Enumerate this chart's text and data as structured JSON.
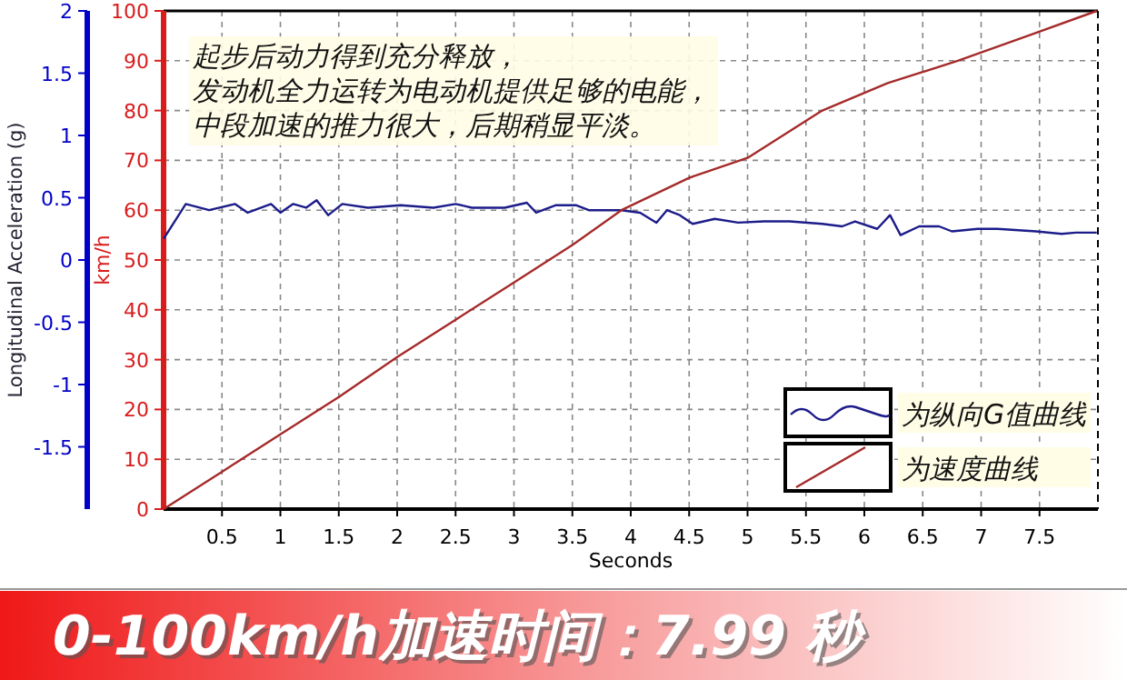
{
  "chart_data": {
    "type": "line",
    "title": "0-100km/h加速时间：7.99 秒",
    "xlabel": "Seconds",
    "ylabel": "km/h",
    "y2label": "Longitudinal Acceleration (g)",
    "annotations": [
      "起步后动力得到充分释放，",
      "发动机全力运转为电动机提供足够的电能，",
      "中段加速的推力很大，后期稍显平淡。"
    ],
    "xlim": [
      0,
      8
    ],
    "xticks": [
      0.5,
      1,
      1.5,
      2,
      2.5,
      3,
      3.5,
      4,
      4.5,
      5,
      5.5,
      6,
      6.5,
      7,
      7.5
    ],
    "ylim": [
      0,
      100
    ],
    "yticks": [
      0,
      10,
      20,
      30,
      40,
      50,
      60,
      70,
      80,
      90,
      100
    ],
    "y2lim": [
      -2,
      2
    ],
    "y2ticks": [
      -1.5,
      -1,
      -0.5,
      0,
      0.5,
      1,
      1.5,
      2
    ],
    "grid": true,
    "legend": "bottom right",
    "line_style": "solid",
    "marker": "none",
    "series": [
      {
        "name": "为纵向G值曲线",
        "color": "#1c1c8a",
        "axis": "y2",
        "x": [
          0,
          0.19,
          0.39,
          0.61,
          0.72,
          0.92,
          1.0,
          1.11,
          1.22,
          1.31,
          1.41,
          1.53,
          1.75,
          2.03,
          2.31,
          2.5,
          2.64,
          2.92,
          3.11,
          3.19,
          3.36,
          3.53,
          3.64,
          3.92,
          4.08,
          4.22,
          4.31,
          4.42,
          4.53,
          4.72,
          4.92,
          5.14,
          5.36,
          5.64,
          5.81,
          5.92,
          6.11,
          6.22,
          6.31,
          6.47,
          6.64,
          6.75,
          6.97,
          7.14,
          7.47,
          7.69,
          7.81,
          7.99
        ],
        "values": [
          0.17,
          0.45,
          0.4,
          0.45,
          0.38,
          0.45,
          0.38,
          0.45,
          0.42,
          0.48,
          0.36,
          0.45,
          0.42,
          0.44,
          0.42,
          0.45,
          0.42,
          0.42,
          0.46,
          0.38,
          0.44,
          0.44,
          0.4,
          0.4,
          0.38,
          0.3,
          0.4,
          0.36,
          0.29,
          0.33,
          0.3,
          0.31,
          0.31,
          0.29,
          0.27,
          0.31,
          0.25,
          0.36,
          0.2,
          0.27,
          0.27,
          0.23,
          0.25,
          0.25,
          0.23,
          0.21,
          0.22,
          0.22
        ]
      },
      {
        "name": "为速度曲线",
        "color": "#a52a2a",
        "x": [
          0,
          0.5,
          1,
          1.5,
          2,
          2.5,
          3,
          3.5,
          3.92,
          4.5,
          5,
          5.64,
          6.2,
          6.8,
          7.4,
          7.99
        ],
        "values": [
          0,
          7.5,
          15,
          22.5,
          30.5,
          38,
          45.5,
          53,
          60,
          66.5,
          70.5,
          80,
          85.5,
          90,
          95,
          100
        ]
      }
    ]
  }
}
